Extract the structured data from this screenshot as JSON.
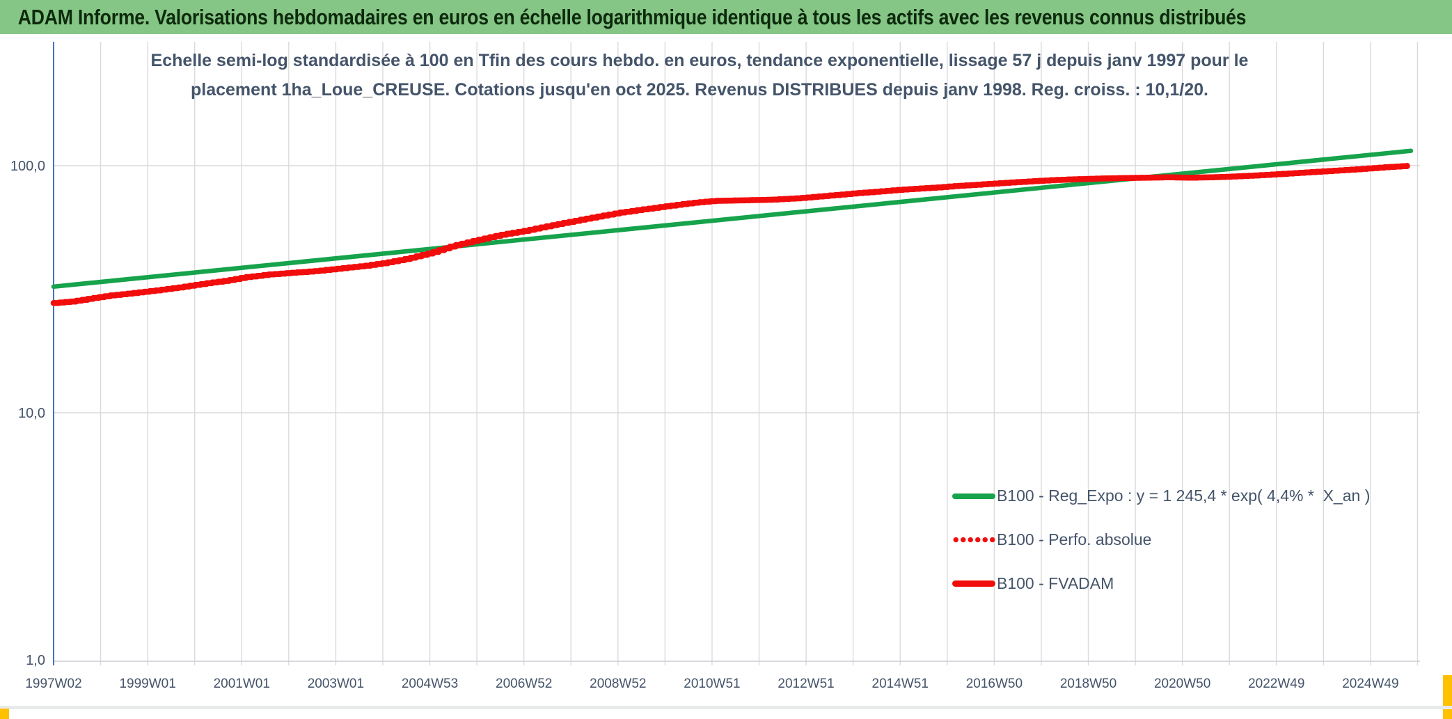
{
  "header": {
    "title": "ADAM Informe. Valorisations hebdomadaires en euros en échelle logarithmique identique à tous les actifs avec les revenus connus distribués",
    "bg_color": "#85C585",
    "text_color": "#0D2A0D"
  },
  "accents": {
    "corner_marker_color": "#FFC000",
    "bottom_strip_color": "#E8E9EB"
  },
  "chart_data": {
    "type": "line",
    "title_line1": "Echelle semi-log standardisée à 100 en Tfin des cours hebdo. en euros, tendance exponentielle, lissage 57 j depuis janv 1997 pour le",
    "title_line2": "placement 1ha_Loue_CREUSE. Cotations jusqu'en oct 2025. Revenus DISTRIBUES depuis janv 1998. Reg. croiss. : 10,1/20.",
    "y_axis": {
      "scale": "log10",
      "tick_labels": [
        "100,0",
        "10,0",
        "1,0"
      ],
      "tick_values": [
        100,
        10,
        1
      ],
      "range": [
        1,
        200
      ],
      "axis_color": "#4472C4",
      "label_color": "#44546A",
      "gridline_color": "#DADADD"
    },
    "x_axis": {
      "tick_labels": [
        "1997W02",
        "1999W01",
        "2001W01",
        "2003W01",
        "2004W53",
        "2006W52",
        "2008W52",
        "2010W51",
        "2012W51",
        "2014W51",
        "2016W50",
        "2018W50",
        "2020W50",
        "2022W49",
        "2024W49"
      ],
      "ticks_every_weeks": 52,
      "labels_every_weeks": 104,
      "first_point": "1997W02",
      "last_data": "oct 2025",
      "label_color": "#44546A",
      "axis_line_color": "#C9CDD4"
    },
    "legend": [
      {
        "label": "B100 - Reg_Expo : y = 1 245,4 * exp( 4,4% *  X_an )",
        "color": "#16A34C",
        "style": "solid"
      },
      {
        "label": "B100 - Perfo. absolue",
        "color": "#F20D0D",
        "style": "dotted"
      },
      {
        "label": "B100 - FVADAM",
        "color": "#F20D0D",
        "style": "solid"
      }
    ],
    "series": [
      {
        "name": "B100 - Reg_Expo",
        "color": "#16A34C",
        "width": 6.5,
        "style": "solid",
        "interpolation": "log-linear",
        "points": [
          [
            1997.03,
            32.4
          ],
          [
            2025.79,
            114.8
          ]
        ]
      },
      {
        "name": "B100 - Perfo. absolue",
        "color": "#F20D0D",
        "width": 8.5,
        "style": "dotted",
        "interpolation": "step",
        "note": "coincides exactly with B100 - FVADAM (hidden behind it)",
        "points": "FVADAM"
      },
      {
        "name": "B100 - FVADAM",
        "color": "#F20D0D",
        "width": 8.5,
        "style": "solid",
        "interpolation": "step",
        "points": [
          [
            1997.03,
            27.8
          ],
          [
            1997.4,
            28.2
          ],
          [
            1997.8,
            29.0
          ],
          [
            1998.2,
            29.8
          ],
          [
            1998.7,
            30.5
          ],
          [
            1999.2,
            31.3
          ],
          [
            1999.7,
            32.2
          ],
          [
            2000.2,
            33.3
          ],
          [
            2000.7,
            34.3
          ],
          [
            2001.1,
            35.4
          ],
          [
            2001.6,
            36.3
          ],
          [
            2002.1,
            36.9
          ],
          [
            2002.6,
            37.5
          ],
          [
            2003.1,
            38.4
          ],
          [
            2003.6,
            39.3
          ],
          [
            2004.0,
            40.3
          ],
          [
            2004.5,
            42.0
          ],
          [
            2005.0,
            44.3
          ],
          [
            2005.5,
            47.5
          ],
          [
            2006.0,
            50.0
          ],
          [
            2006.5,
            52.5
          ],
          [
            2007.0,
            54.5
          ],
          [
            2007.5,
            57.0
          ],
          [
            2008.0,
            59.5
          ],
          [
            2008.5,
            62.0
          ],
          [
            2009.0,
            64.5
          ],
          [
            2009.5,
            66.5
          ],
          [
            2010.0,
            68.5
          ],
          [
            2010.5,
            70.5
          ],
          [
            2011.0,
            72.0
          ],
          [
            2011.6,
            72.4
          ],
          [
            2012.2,
            72.8
          ],
          [
            2012.8,
            73.8
          ],
          [
            2013.3,
            75.2
          ],
          [
            2013.9,
            77.0
          ],
          [
            2014.5,
            78.6
          ],
          [
            2015.0,
            80.0
          ],
          [
            2015.6,
            81.3
          ],
          [
            2016.1,
            82.6
          ],
          [
            2016.7,
            84.0
          ],
          [
            2017.2,
            85.3
          ],
          [
            2017.8,
            86.6
          ],
          [
            2018.3,
            87.6
          ],
          [
            2018.9,
            88.4
          ],
          [
            2019.4,
            88.9
          ],
          [
            2020.0,
            89.3
          ],
          [
            2020.6,
            89.7
          ],
          [
            2021.1,
            89.4
          ],
          [
            2021.7,
            89.9
          ],
          [
            2022.2,
            90.7
          ],
          [
            2022.8,
            92.0
          ],
          [
            2023.3,
            93.3
          ],
          [
            2023.9,
            94.8
          ],
          [
            2024.4,
            96.0
          ],
          [
            2024.9,
            97.5
          ],
          [
            2025.4,
            99.0
          ],
          [
            2025.79,
            100.0
          ]
        ]
      }
    ],
    "layout_hints": {
      "grid_vertical": "yearly (every 52 weeks)",
      "grid_horizontal": "log decades only",
      "legend_position": "inside bottom-right"
    }
  }
}
